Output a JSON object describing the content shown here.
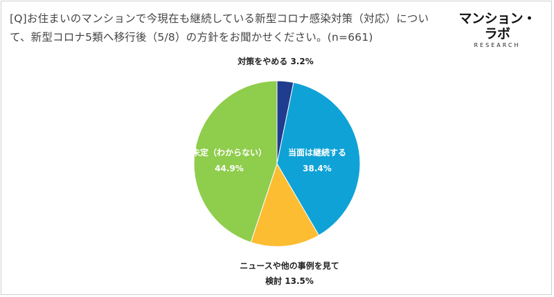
{
  "question": "[Q]お住まいのマンションで今現在も継続している新型コロナ感染対策（対応）について、新型コロナ5類へ移行後（5/8）の方針をお聞かせください。(n=661)",
  "logo": {
    "main": "マンション・ラボ",
    "sub": "RESEARCH"
  },
  "colors": {
    "stop": "#1f3c8f",
    "continue": "#0fa2d6",
    "consider": "#fcbd33",
    "undecided": "#8fcd4c"
  },
  "chart_data": {
    "type": "pie",
    "title": "",
    "start_angle_deg": 0,
    "direction": "clockwise",
    "slices": [
      {
        "label": "対策をやめる",
        "value": 3.2,
        "display": "3.2%",
        "color": "#1f3c8f"
      },
      {
        "label": "当面は継続する",
        "value": 38.4,
        "display": "38.4%",
        "color": "#0fa2d6"
      },
      {
        "label": "ニュースや他の事例を見て検討",
        "value": 13.5,
        "display": "13.5%",
        "color": "#fcbd33"
      },
      {
        "label": "未定（わからない）",
        "value": 44.9,
        "display": "44.9%",
        "color": "#8fcd4c"
      }
    ],
    "labels": {
      "stop": "対策をやめる 3.2%",
      "continue_name": "当面は継続する",
      "continue_value": "38.4%",
      "consider_line1": "ニュースや他の事例を見て",
      "consider_line2": "検討 13.5%",
      "undecided_name": "未定（わからない）",
      "undecided_value": "44.9%"
    }
  }
}
